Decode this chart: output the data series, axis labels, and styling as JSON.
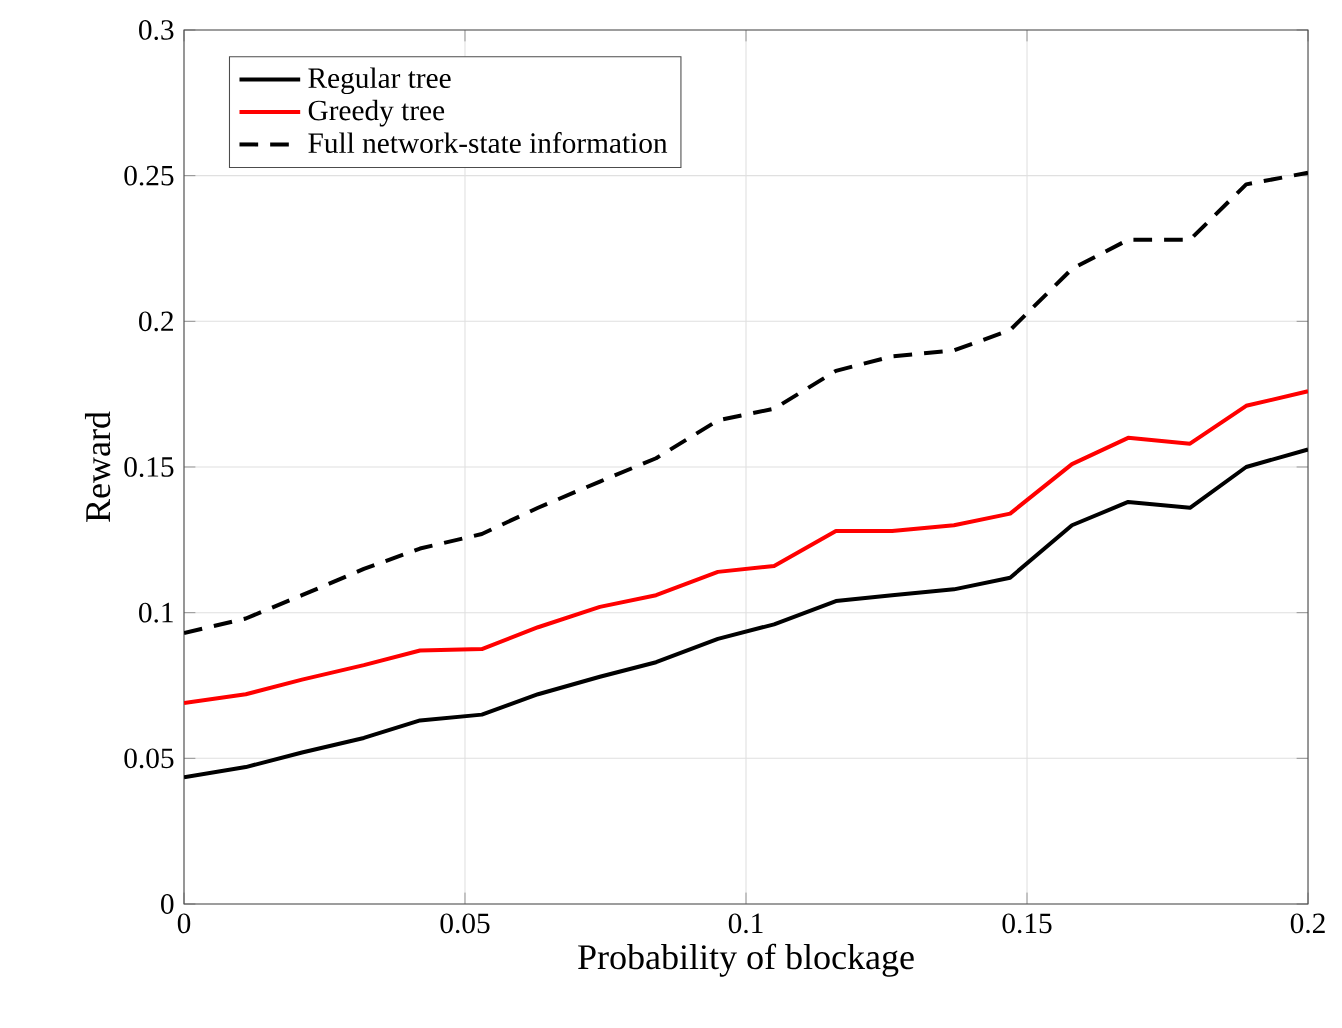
{
  "chart_data": {
    "type": "line",
    "xlabel": "Probability of blockage",
    "ylabel": "Reward",
    "x": [
      0,
      0.011,
      0.021,
      0.032,
      0.042,
      0.053,
      0.063,
      0.074,
      0.084,
      0.095,
      0.105,
      0.116,
      0.126,
      0.137,
      0.147,
      0.158,
      0.168,
      0.179,
      0.189,
      0.2
    ],
    "series": [
      {
        "name": "Regular tree",
        "color": "#000000",
        "line_style": "solid",
        "values": [
          0.0435,
          0.047,
          0.052,
          0.057,
          0.063,
          0.065,
          0.072,
          0.078,
          0.083,
          0.091,
          0.096,
          0.104,
          0.106,
          0.108,
          0.112,
          0.13,
          0.138,
          0.136,
          0.15,
          0.156
        ]
      },
      {
        "name": "Greedy tree",
        "color": "#ff0000",
        "line_style": "solid",
        "values": [
          0.069,
          0.072,
          0.077,
          0.082,
          0.087,
          0.0875,
          0.095,
          0.102,
          0.106,
          0.114,
          0.116,
          0.128,
          0.128,
          0.13,
          0.134,
          0.151,
          0.16,
          0.158,
          0.171,
          0.176
        ]
      },
      {
        "name": "Full network-state information",
        "color": "#000000",
        "line_style": "dashed",
        "values": [
          0.093,
          0.098,
          0.106,
          0.115,
          0.122,
          0.127,
          0.136,
          0.145,
          0.153,
          0.166,
          0.17,
          0.183,
          0.188,
          0.19,
          0.197,
          0.218,
          0.228,
          0.228,
          0.247,
          0.251
        ]
      }
    ],
    "xlim": [
      0,
      0.2
    ],
    "ylim": [
      0,
      0.3
    ],
    "xticks": [
      0,
      0.05,
      0.1,
      0.15,
      0.2
    ],
    "yticks": [
      0,
      0.05,
      0.1,
      0.15,
      0.2,
      0.25,
      0.3
    ],
    "grid": true,
    "legend": "top left",
    "marker": "none"
  }
}
